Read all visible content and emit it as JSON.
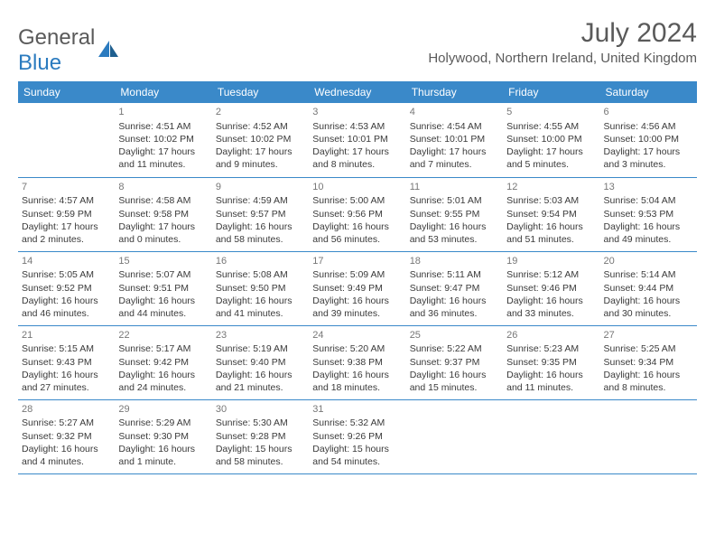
{
  "logo": {
    "text1": "General",
    "text2": "Blue",
    "icon_color": "#2b7bbf"
  },
  "title": "July 2024",
  "location": "Holywood, Northern Ireland, United Kingdom",
  "colors": {
    "header_bg": "#3a89c9",
    "header_text": "#ffffff",
    "border": "#3a89c9",
    "text": "#3a3a3a",
    "daynum": "#777777",
    "title_color": "#5a5a5a"
  },
  "day_headers": [
    "Sunday",
    "Monday",
    "Tuesday",
    "Wednesday",
    "Thursday",
    "Friday",
    "Saturday"
  ],
  "weeks": [
    [
      null,
      {
        "n": "1",
        "sr": "4:51 AM",
        "ss": "10:02 PM",
        "dl": "17 hours and 11 minutes."
      },
      {
        "n": "2",
        "sr": "4:52 AM",
        "ss": "10:02 PM",
        "dl": "17 hours and 9 minutes."
      },
      {
        "n": "3",
        "sr": "4:53 AM",
        "ss": "10:01 PM",
        "dl": "17 hours and 8 minutes."
      },
      {
        "n": "4",
        "sr": "4:54 AM",
        "ss": "10:01 PM",
        "dl": "17 hours and 7 minutes."
      },
      {
        "n": "5",
        "sr": "4:55 AM",
        "ss": "10:00 PM",
        "dl": "17 hours and 5 minutes."
      },
      {
        "n": "6",
        "sr": "4:56 AM",
        "ss": "10:00 PM",
        "dl": "17 hours and 3 minutes."
      }
    ],
    [
      {
        "n": "7",
        "sr": "4:57 AM",
        "ss": "9:59 PM",
        "dl": "17 hours and 2 minutes."
      },
      {
        "n": "8",
        "sr": "4:58 AM",
        "ss": "9:58 PM",
        "dl": "17 hours and 0 minutes."
      },
      {
        "n": "9",
        "sr": "4:59 AM",
        "ss": "9:57 PM",
        "dl": "16 hours and 58 minutes."
      },
      {
        "n": "10",
        "sr": "5:00 AM",
        "ss": "9:56 PM",
        "dl": "16 hours and 56 minutes."
      },
      {
        "n": "11",
        "sr": "5:01 AM",
        "ss": "9:55 PM",
        "dl": "16 hours and 53 minutes."
      },
      {
        "n": "12",
        "sr": "5:03 AM",
        "ss": "9:54 PM",
        "dl": "16 hours and 51 minutes."
      },
      {
        "n": "13",
        "sr": "5:04 AM",
        "ss": "9:53 PM",
        "dl": "16 hours and 49 minutes."
      }
    ],
    [
      {
        "n": "14",
        "sr": "5:05 AM",
        "ss": "9:52 PM",
        "dl": "16 hours and 46 minutes."
      },
      {
        "n": "15",
        "sr": "5:07 AM",
        "ss": "9:51 PM",
        "dl": "16 hours and 44 minutes."
      },
      {
        "n": "16",
        "sr": "5:08 AM",
        "ss": "9:50 PM",
        "dl": "16 hours and 41 minutes."
      },
      {
        "n": "17",
        "sr": "5:09 AM",
        "ss": "9:49 PM",
        "dl": "16 hours and 39 minutes."
      },
      {
        "n": "18",
        "sr": "5:11 AM",
        "ss": "9:47 PM",
        "dl": "16 hours and 36 minutes."
      },
      {
        "n": "19",
        "sr": "5:12 AM",
        "ss": "9:46 PM",
        "dl": "16 hours and 33 minutes."
      },
      {
        "n": "20",
        "sr": "5:14 AM",
        "ss": "9:44 PM",
        "dl": "16 hours and 30 minutes."
      }
    ],
    [
      {
        "n": "21",
        "sr": "5:15 AM",
        "ss": "9:43 PM",
        "dl": "16 hours and 27 minutes."
      },
      {
        "n": "22",
        "sr": "5:17 AM",
        "ss": "9:42 PM",
        "dl": "16 hours and 24 minutes."
      },
      {
        "n": "23",
        "sr": "5:19 AM",
        "ss": "9:40 PM",
        "dl": "16 hours and 21 minutes."
      },
      {
        "n": "24",
        "sr": "5:20 AM",
        "ss": "9:38 PM",
        "dl": "16 hours and 18 minutes."
      },
      {
        "n": "25",
        "sr": "5:22 AM",
        "ss": "9:37 PM",
        "dl": "16 hours and 15 minutes."
      },
      {
        "n": "26",
        "sr": "5:23 AM",
        "ss": "9:35 PM",
        "dl": "16 hours and 11 minutes."
      },
      {
        "n": "27",
        "sr": "5:25 AM",
        "ss": "9:34 PM",
        "dl": "16 hours and 8 minutes."
      }
    ],
    [
      {
        "n": "28",
        "sr": "5:27 AM",
        "ss": "9:32 PM",
        "dl": "16 hours and 4 minutes."
      },
      {
        "n": "29",
        "sr": "5:29 AM",
        "ss": "9:30 PM",
        "dl": "16 hours and 1 minute."
      },
      {
        "n": "30",
        "sr": "5:30 AM",
        "ss": "9:28 PM",
        "dl": "15 hours and 58 minutes."
      },
      {
        "n": "31",
        "sr": "5:32 AM",
        "ss": "9:26 PM",
        "dl": "15 hours and 54 minutes."
      },
      null,
      null,
      null
    ]
  ],
  "labels": {
    "sunrise": "Sunrise:",
    "sunset": "Sunset:",
    "daylight": "Daylight:"
  }
}
